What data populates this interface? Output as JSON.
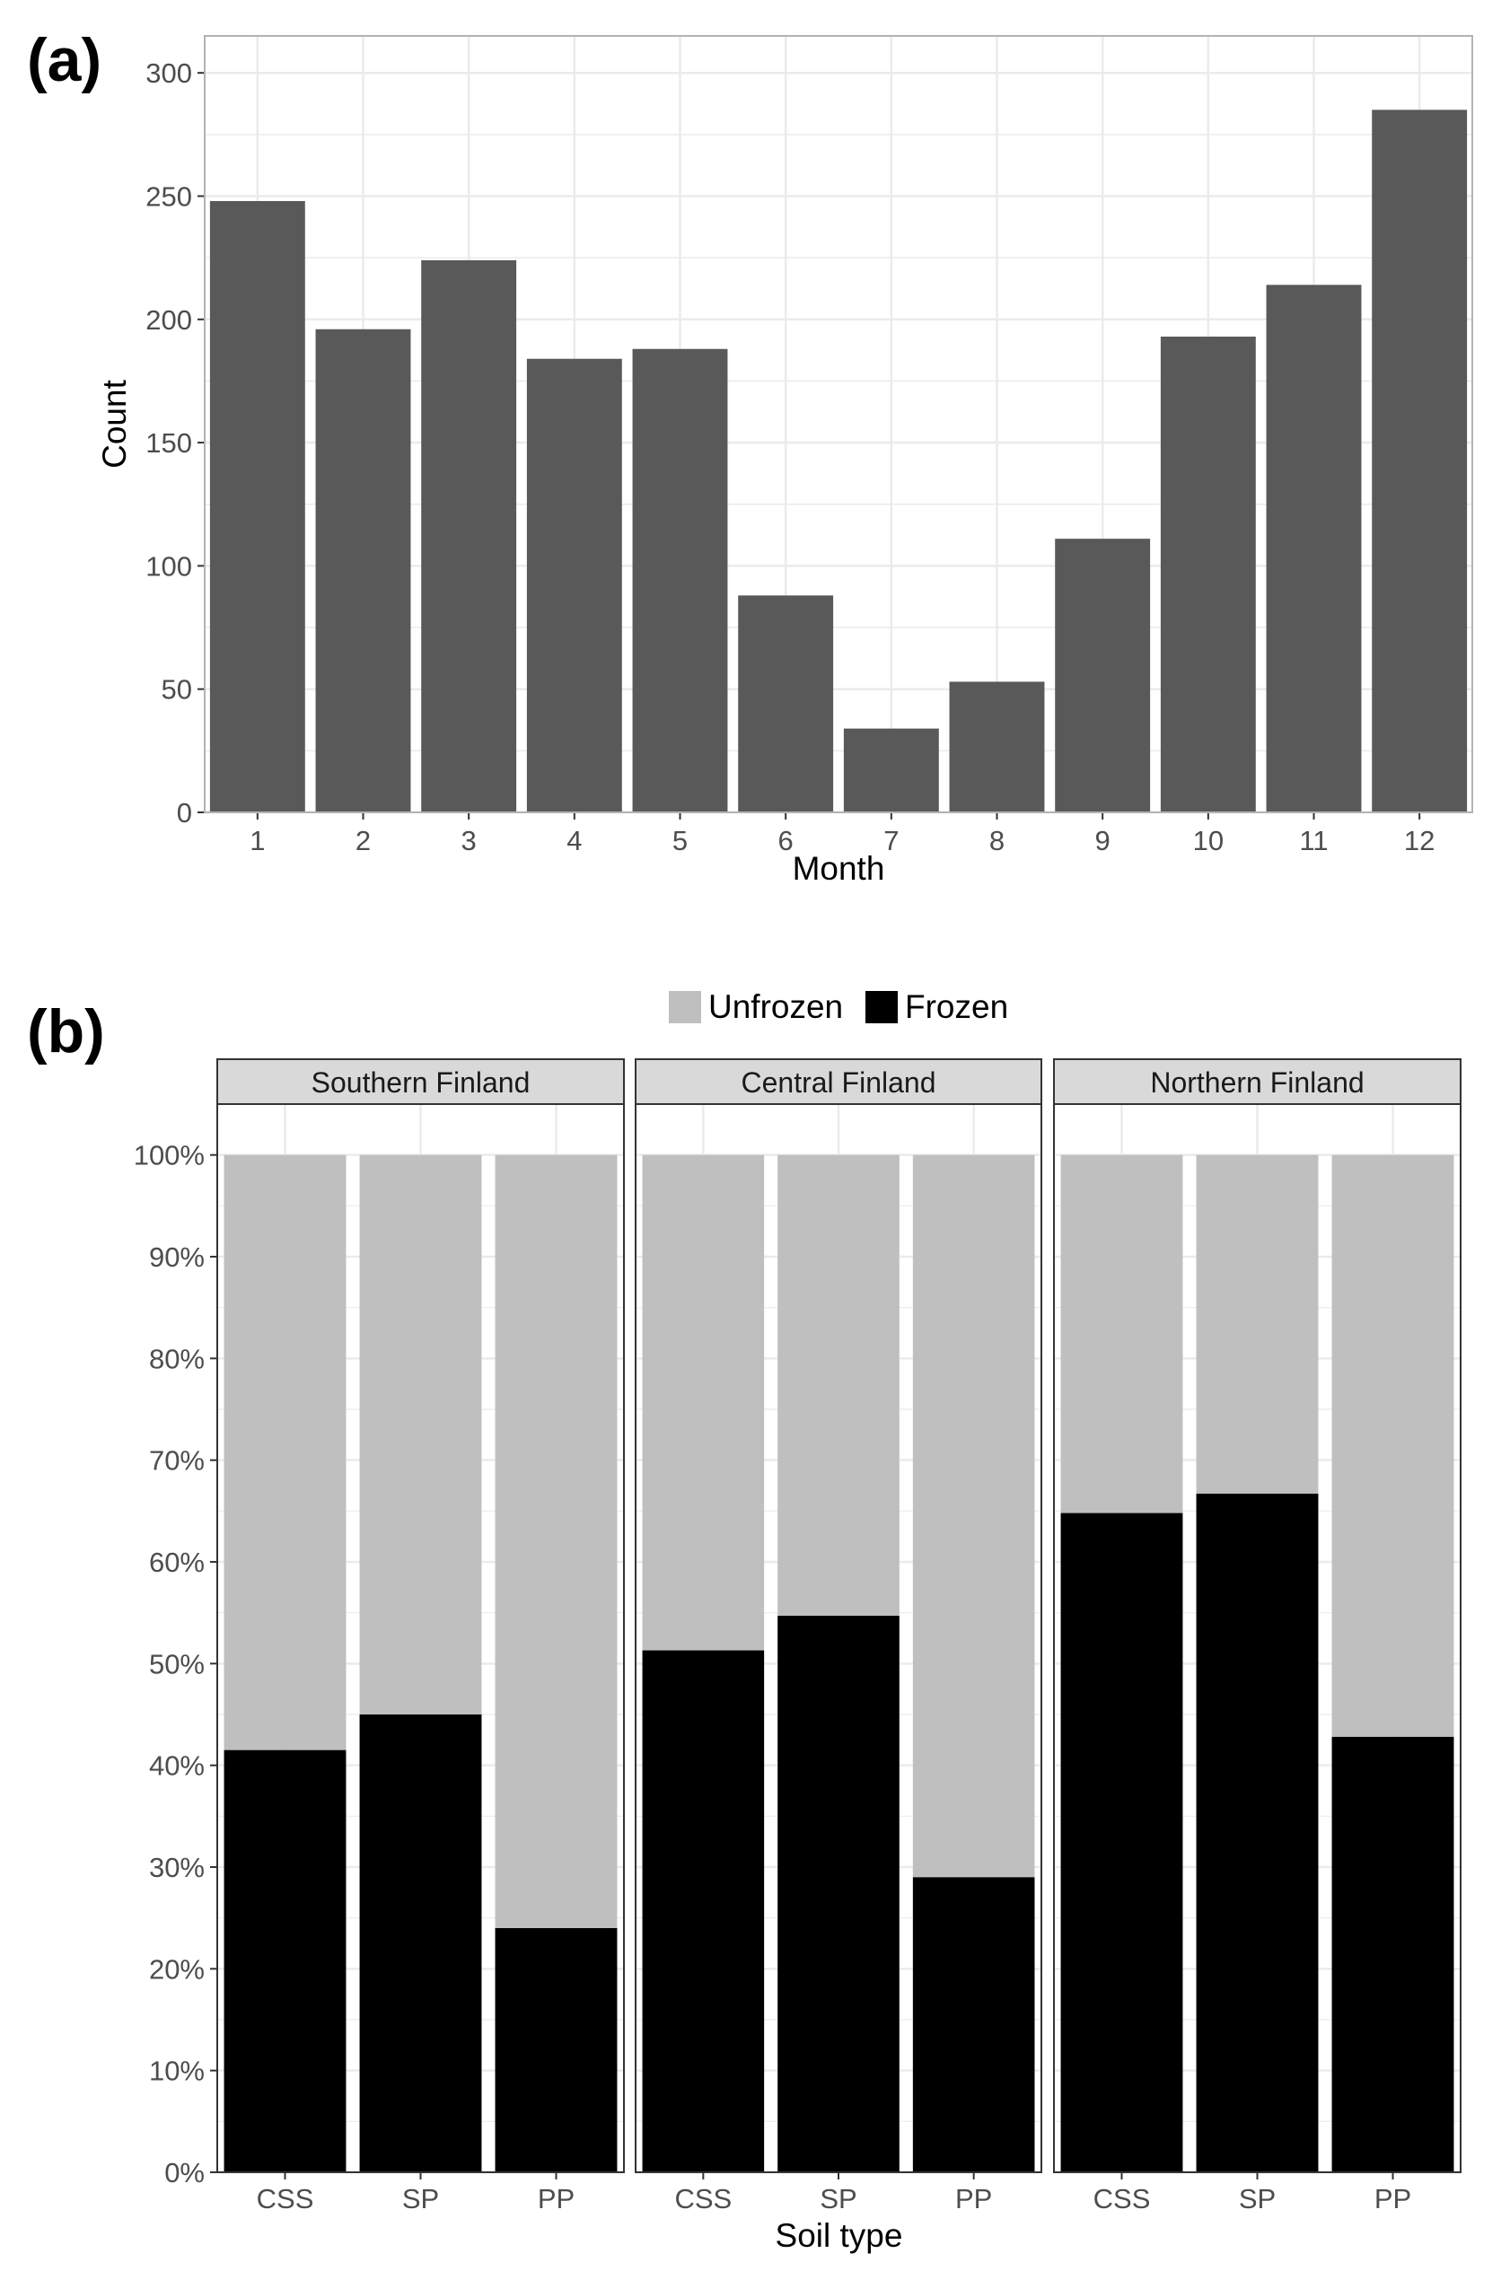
{
  "figure": {
    "panel_a_label": "(a)",
    "panel_b_label": "(b)"
  },
  "chart_data": [
    {
      "type": "bar",
      "panel": "(a)",
      "title": "",
      "xlabel": "Month",
      "ylabel": "Count",
      "categories": [
        "1",
        "2",
        "3",
        "4",
        "5",
        "6",
        "7",
        "8",
        "9",
        "10",
        "11",
        "12"
      ],
      "values": [
        248,
        196,
        224,
        184,
        188,
        88,
        34,
        53,
        111,
        193,
        214,
        285
      ],
      "ylim": [
        0,
        315
      ],
      "yticks": [
        0,
        50,
        100,
        150,
        200,
        250,
        300
      ],
      "grid": true,
      "colors": {
        "bar": "#595959",
        "grid": "#ebebeb",
        "border": "#b3b3b3"
      }
    },
    {
      "type": "bar",
      "stacked": true,
      "panel": "(b)",
      "title": "",
      "xlabel": "Soil type",
      "ylabel": "",
      "legend": {
        "position": "top",
        "entries": [
          "Unfrozen",
          "Frozen"
        ]
      },
      "ylim": [
        0,
        105
      ],
      "yticks": [
        "0%",
        "10%",
        "20%",
        "30%",
        "40%",
        "50%",
        "60%",
        "70%",
        "80%",
        "90%",
        "100%"
      ],
      "facets": [
        {
          "name": "Southern Finland",
          "categories": [
            "CSS",
            "SP",
            "PP"
          ],
          "frozen": [
            41.5,
            45,
            24
          ],
          "unfrozen": [
            58.5,
            55,
            76
          ]
        },
        {
          "name": "Central Finland",
          "categories": [
            "CSS",
            "SP",
            "PP"
          ],
          "frozen": [
            51.3,
            54.7,
            29
          ],
          "unfrozen": [
            48.7,
            45.3,
            71
          ]
        },
        {
          "name": "Northern Finland",
          "categories": [
            "CSS",
            "SP",
            "PP"
          ],
          "frozen": [
            64.8,
            66.7,
            42.8
          ],
          "unfrozen": [
            35.2,
            33.3,
            57.2
          ]
        }
      ],
      "grid": true,
      "colors": {
        "frozen": "#000000",
        "unfrozen": "#bfbfbf",
        "strip": "#d9d9d9",
        "grid": "#ebebeb"
      }
    }
  ]
}
